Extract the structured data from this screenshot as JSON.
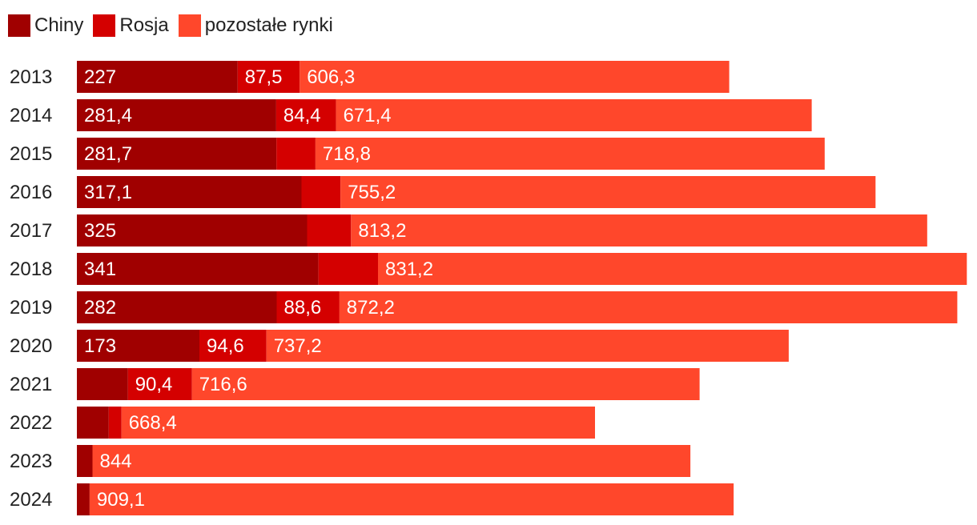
{
  "chart_data": {
    "type": "bar",
    "orientation": "horizontal",
    "stacked": true,
    "categories": [
      "2013",
      "2014",
      "2015",
      "2016",
      "2017",
      "2018",
      "2019",
      "2020",
      "2021",
      "2022",
      "2023",
      "2024"
    ],
    "series": [
      {
        "name": "Chiny",
        "color": "#a00000",
        "values": [
          227,
          281.4,
          281.7,
          317.1,
          325,
          341,
          282,
          173,
          72,
          45,
          22,
          18
        ],
        "labels": [
          "227",
          "281,4",
          "281,7",
          "317,1",
          "325",
          "341",
          "282",
          "173",
          "",
          "",
          "",
          ""
        ]
      },
      {
        "name": "Rosja",
        "color": "#d40000",
        "values": [
          87.5,
          84.4,
          55,
          55,
          62,
          84,
          88.6,
          94.6,
          90.4,
          18,
          0,
          0
        ],
        "labels": [
          "87,5",
          "84,4",
          "",
          "",
          "",
          "",
          "88,6",
          "94,6",
          "90,4",
          "",
          "",
          ""
        ]
      },
      {
        "name": "pozostałe rynki",
        "color": "#ff472b",
        "values": [
          606.3,
          671.4,
          718.8,
          755.2,
          813.2,
          831.2,
          872.2,
          737.2,
          716.6,
          668.4,
          844,
          909.1
        ],
        "labels": [
          "606,3",
          "671,4",
          "718,8",
          "755,2",
          "813,2",
          "831,2",
          "872,2",
          "737,2",
          "716,6",
          "668,4",
          "844",
          "909,1"
        ]
      }
    ],
    "xlim": [
      0,
      1257
    ],
    "legend": "top-left",
    "grid": false
  }
}
